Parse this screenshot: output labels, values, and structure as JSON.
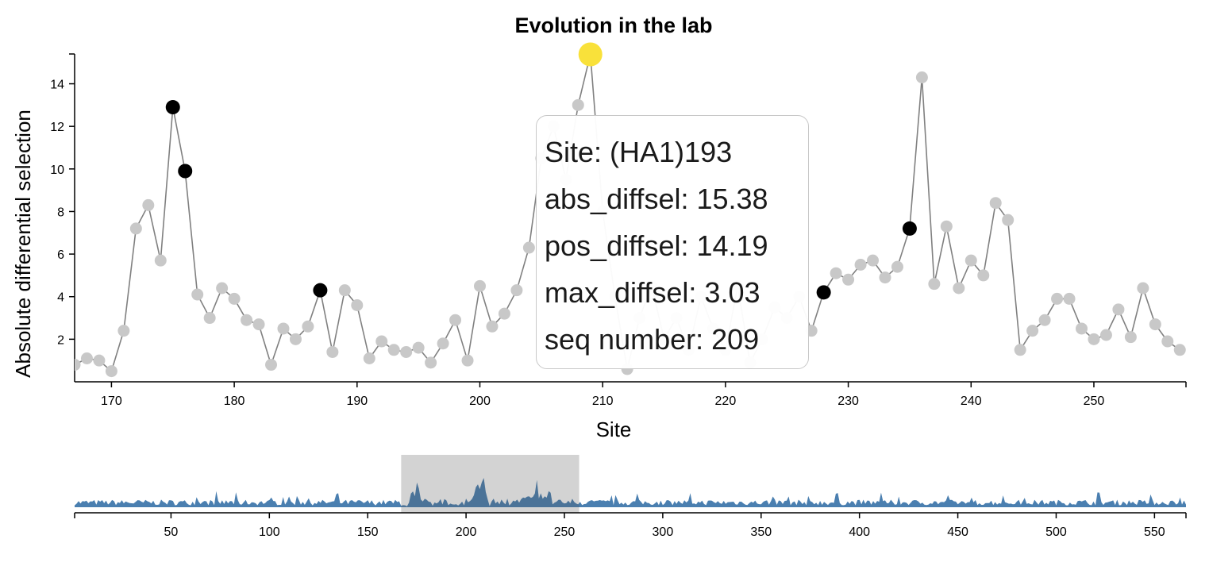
{
  "chart_data": {
    "type": "scatter",
    "title": "Evolution in the lab",
    "xlabel": "Site",
    "ylabel": "Absolute differential selection",
    "xlim": [
      167,
      257.5
    ],
    "ylim": [
      0,
      15.4
    ],
    "x_ticks": [
      170,
      180,
      190,
      200,
      210,
      220,
      230,
      240,
      250
    ],
    "y_ticks": [
      2,
      4,
      6,
      8,
      10,
      12,
      14
    ],
    "grid": false,
    "series": [
      {
        "x": [
          167,
          168,
          169,
          170,
          171,
          172,
          173,
          174,
          175,
          176,
          177,
          178,
          179,
          180,
          181,
          182,
          183,
          184,
          185,
          186,
          187,
          188,
          189,
          190,
          191,
          192,
          193,
          194,
          195,
          196,
          197,
          198,
          199,
          200,
          201,
          202,
          203,
          204,
          205,
          206,
          207,
          208,
          209,
          210,
          211,
          212,
          213,
          214,
          215,
          216,
          217,
          218,
          219,
          220,
          221,
          222,
          223,
          224,
          225,
          226,
          227,
          228,
          229,
          230,
          231,
          232,
          233,
          234,
          235,
          236,
          237,
          238,
          239,
          240,
          241,
          242,
          243,
          244,
          245,
          246,
          247,
          248,
          249,
          250,
          251,
          252,
          253,
          254,
          255,
          256,
          257
        ],
        "values": [
          0.8,
          1.1,
          1.0,
          0.5,
          2.4,
          7.2,
          8.3,
          5.7,
          12.9,
          9.9,
          4.1,
          3.0,
          4.4,
          3.9,
          2.9,
          2.7,
          0.8,
          2.5,
          2.0,
          2.6,
          4.3,
          1.4,
          4.3,
          3.6,
          1.1,
          1.9,
          1.5,
          1.4,
          1.6,
          0.9,
          1.8,
          2.9,
          1.0,
          4.5,
          2.6,
          3.2,
          4.3,
          6.3,
          10.5,
          12.0,
          9.5,
          13.0,
          15.38,
          8.0,
          4.0,
          0.6,
          3.0,
          4.5,
          2.0,
          3.0,
          1.5,
          4.0,
          2.5,
          1.5,
          4.5,
          0.9,
          2.0,
          3.5,
          3.0,
          4.0,
          2.4,
          4.2,
          5.1,
          4.8,
          5.5,
          5.7,
          4.9,
          5.4,
          7.2,
          14.3,
          4.6,
          7.3,
          4.4,
          5.7,
          5.0,
          8.4,
          7.6,
          1.5,
          2.4,
          2.9,
          3.9,
          3.9,
          2.5,
          2.0,
          2.2,
          3.4,
          2.1,
          4.4,
          2.7,
          1.9,
          1.5
        ]
      }
    ],
    "highlighted_sites": [
      175,
      176,
      187,
      228,
      235
    ],
    "selected_site": 209,
    "colors": {
      "point": "#c8c8c8",
      "highlight": "#000000",
      "selected": "#f9e13a",
      "line": "#808080",
      "overview_fill": "#4a7fb0",
      "brush": "#d3d3d3"
    },
    "overview": {
      "type": "area",
      "xlim": [
        1,
        566
      ],
      "x_ticks": [
        50,
        100,
        150,
        200,
        250,
        300,
        350,
        400,
        450,
        500,
        550
      ],
      "brush_range": [
        167,
        257.5
      ]
    }
  },
  "tooltip": {
    "site": "Site: (HA1)193",
    "abs_diffsel": "abs_diffsel: 15.38",
    "pos_diffsel": "pos_diffsel: 14.19",
    "max_diffsel": "max_diffsel: 3.03",
    "seq_number": "seq number: 209"
  }
}
